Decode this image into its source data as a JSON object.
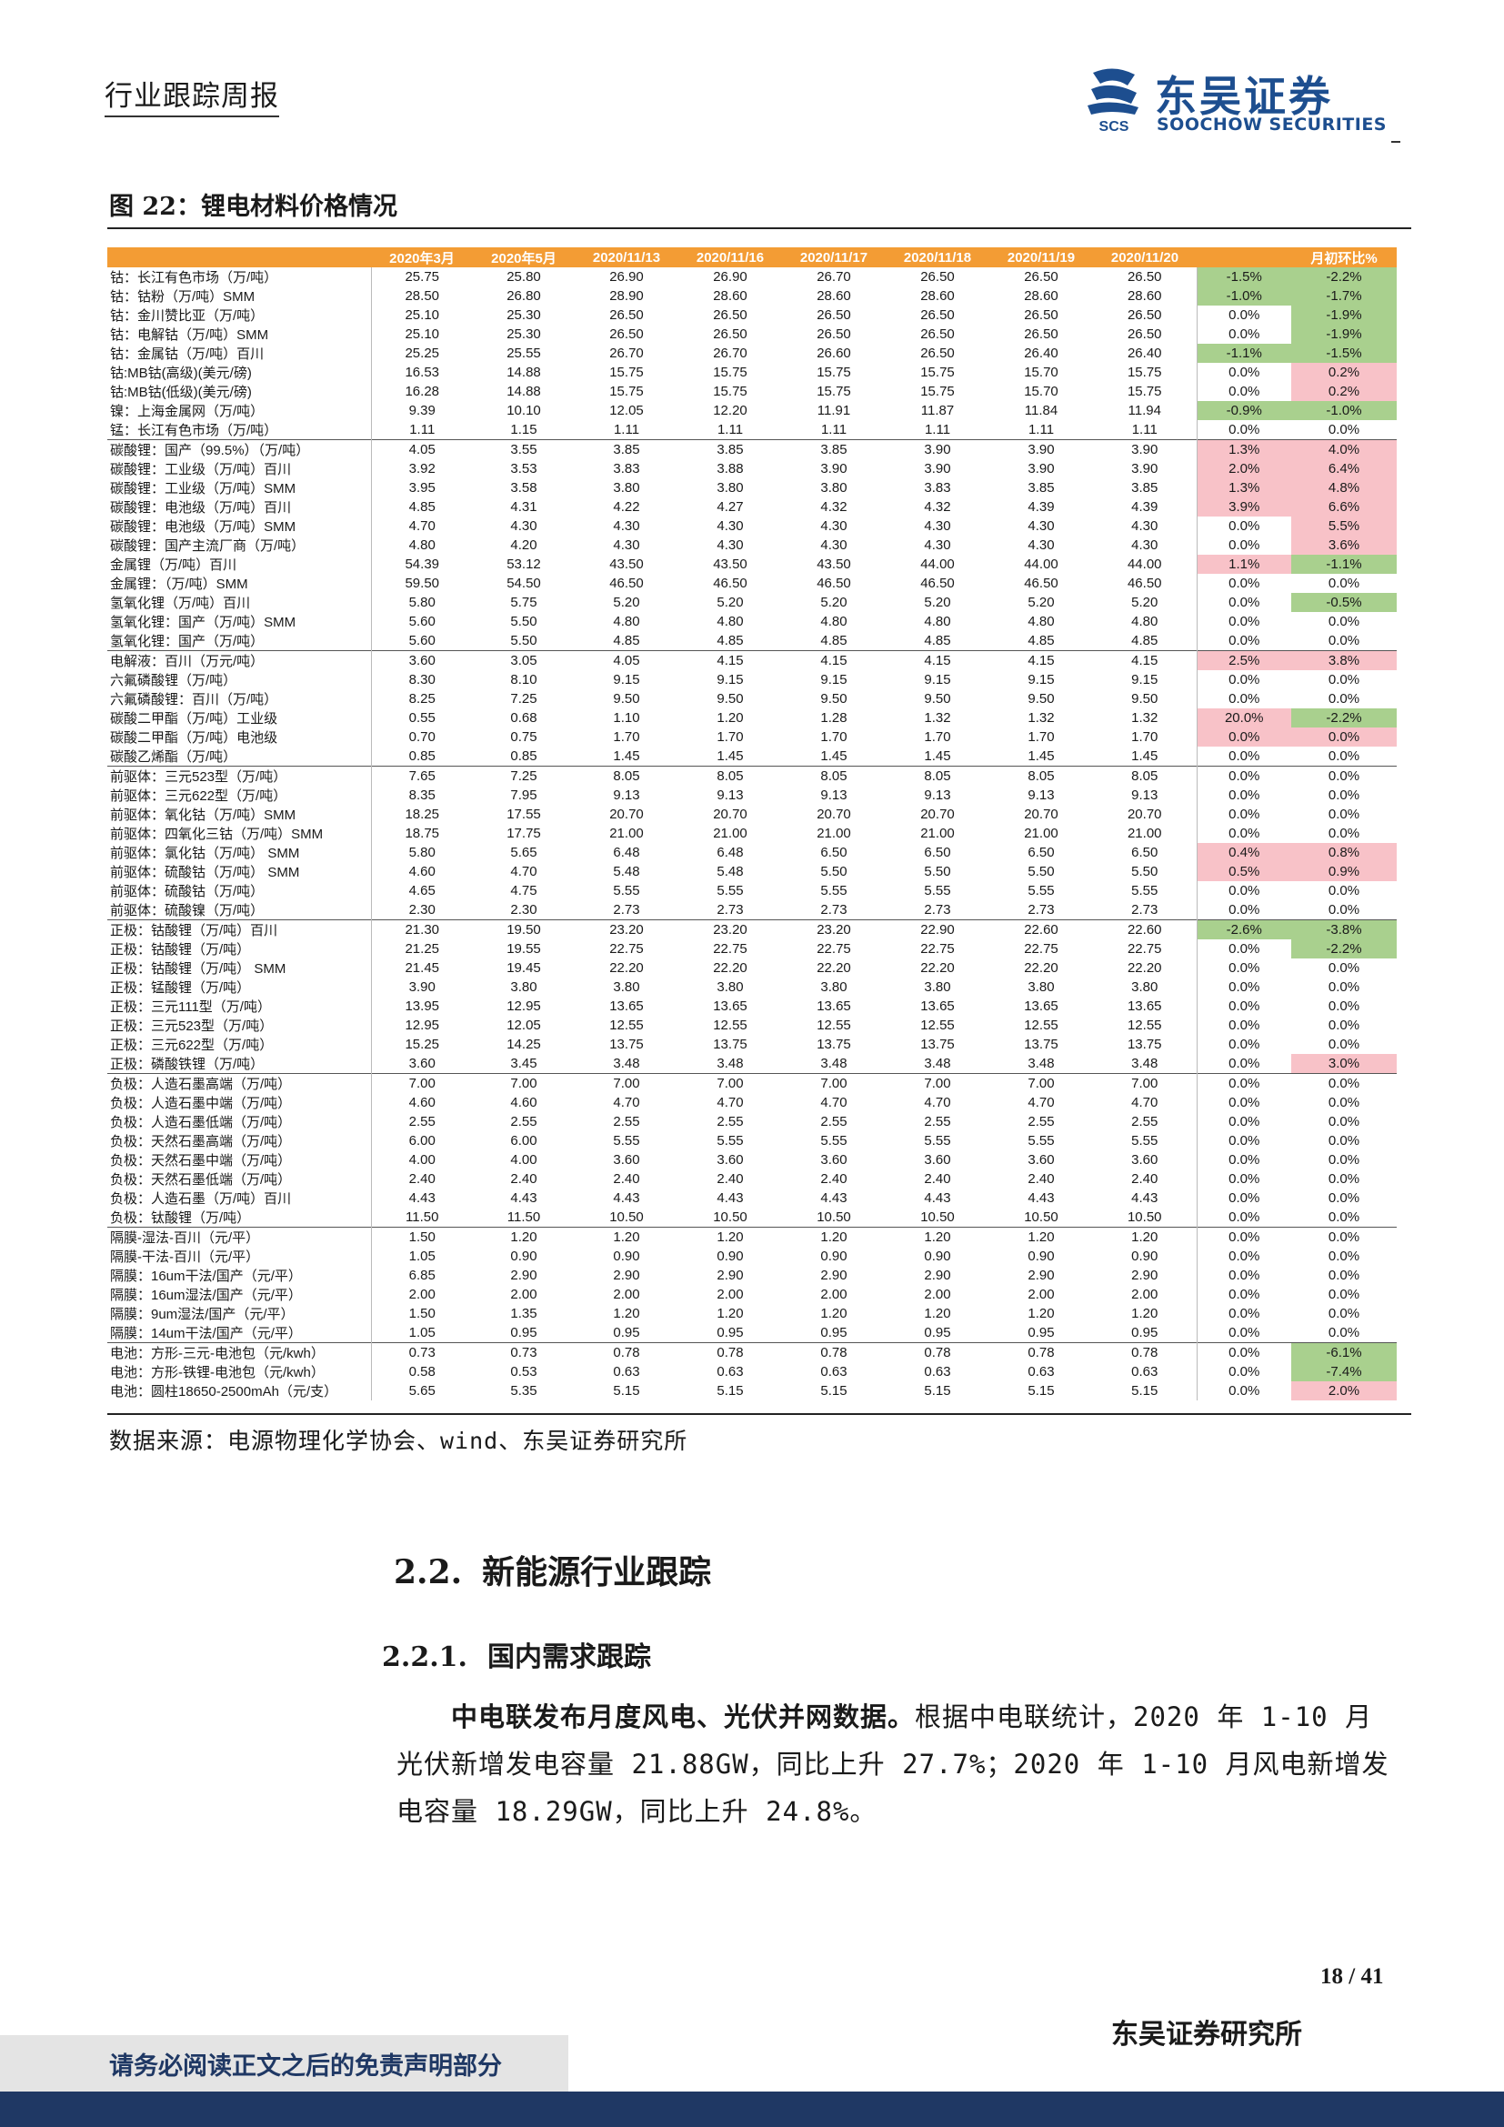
{
  "header": {
    "title": "行业跟踪周报",
    "logo_cn": "东吴证券",
    "logo_en": "SOOCHOW SECURITIES",
    "logo_mark_text": "SCS"
  },
  "figure": {
    "title": "图 22：锂电材料价格情况",
    "source": "数据来源：电源物理化学协会、wind、东吴证券研究所"
  },
  "table": {
    "columns": [
      "",
      "2020年3月",
      "2020年5月",
      "2020/11/13",
      "2020/11/16",
      "2020/11/17",
      "2020/11/18",
      "2020/11/19",
      "2020/11/20",
      "",
      "月初环比%"
    ],
    "colors": {
      "header_bg": "#f39c34",
      "negative_bg": "#a9d08e",
      "positive_bg": "#f8c2c8"
    },
    "rows": [
      {
        "name": "钴：长江有色市场（万/吨）",
        "v": [
          "25.75",
          "25.80",
          "26.90",
          "26.90",
          "26.70",
          "26.50",
          "26.50",
          "26.50"
        ],
        "wk": "-1.5%",
        "wk_s": "neg",
        "mo": "-2.2%",
        "mo_s": "neg"
      },
      {
        "name": "钴：钴粉（万/吨）SMM",
        "v": [
          "28.50",
          "26.80",
          "28.90",
          "28.60",
          "28.60",
          "28.60",
          "28.60",
          "28.60"
        ],
        "wk": "-1.0%",
        "wk_s": "neg",
        "mo": "-1.7%",
        "mo_s": "neg"
      },
      {
        "name": "钴：金川赞比亚（万/吨）",
        "v": [
          "25.10",
          "25.30",
          "26.50",
          "26.50",
          "26.50",
          "26.50",
          "26.50",
          "26.50"
        ],
        "wk": "0.0%",
        "wk_s": "",
        "mo": "-1.9%",
        "mo_s": "neg"
      },
      {
        "name": "钴：电解钴（万/吨）SMM",
        "v": [
          "25.10",
          "25.30",
          "26.50",
          "26.50",
          "26.50",
          "26.50",
          "26.50",
          "26.50"
        ],
        "wk": "0.0%",
        "wk_s": "",
        "mo": "-1.9%",
        "mo_s": "neg"
      },
      {
        "name": "钴：金属钴（万/吨）百川",
        "v": [
          "25.25",
          "25.55",
          "26.70",
          "26.70",
          "26.60",
          "26.50",
          "26.40",
          "26.40"
        ],
        "wk": "-1.1%",
        "wk_s": "neg",
        "mo": "-1.5%",
        "mo_s": "neg"
      },
      {
        "name": "钴:MB钴(高级)(美元/磅)",
        "v": [
          "16.53",
          "14.88",
          "15.75",
          "15.75",
          "15.75",
          "15.75",
          "15.70",
          "15.75"
        ],
        "wk": "0.0%",
        "wk_s": "",
        "mo": "0.2%",
        "mo_s": "pos"
      },
      {
        "name": "钴:MB钴(低级)(美元/磅)",
        "v": [
          "16.28",
          "14.88",
          "15.75",
          "15.75",
          "15.75",
          "15.75",
          "15.70",
          "15.75"
        ],
        "wk": "0.0%",
        "wk_s": "",
        "mo": "0.2%",
        "mo_s": "pos"
      },
      {
        "name": "镍：上海金属网（万/吨）",
        "v": [
          "9.39",
          "10.10",
          "12.05",
          "12.20",
          "11.91",
          "11.87",
          "11.84",
          "11.94"
        ],
        "wk": "-0.9%",
        "wk_s": "neg",
        "mo": "-1.0%",
        "mo_s": "neg"
      },
      {
        "name": "锰：长江有色市场（万/吨）",
        "v": [
          "1.11",
          "1.15",
          "1.11",
          "1.11",
          "1.11",
          "1.11",
          "1.11",
          "1.11"
        ],
        "wk": "0.0%",
        "wk_s": "",
        "mo": "0.0%",
        "mo_s": ""
      },
      {
        "name": "碳酸锂：国产（99.5%）（万/吨）",
        "v": [
          "4.05",
          "3.55",
          "3.85",
          "3.85",
          "3.85",
          "3.90",
          "3.90",
          "3.90"
        ],
        "wk": "1.3%",
        "wk_s": "pos",
        "mo": "4.0%",
        "mo_s": "pos",
        "grp": true
      },
      {
        "name": "碳酸锂：工业级（万/吨）百川",
        "v": [
          "3.92",
          "3.53",
          "3.83",
          "3.88",
          "3.90",
          "3.90",
          "3.90",
          "3.90"
        ],
        "wk": "2.0%",
        "wk_s": "pos",
        "mo": "6.4%",
        "mo_s": "pos"
      },
      {
        "name": "碳酸锂：工业级（万/吨）SMM",
        "v": [
          "3.95",
          "3.58",
          "3.80",
          "3.80",
          "3.80",
          "3.83",
          "3.85",
          "3.85"
        ],
        "wk": "1.3%",
        "wk_s": "pos",
        "mo": "4.8%",
        "mo_s": "pos"
      },
      {
        "name": "碳酸锂：电池级（万/吨）百川",
        "v": [
          "4.85",
          "4.31",
          "4.22",
          "4.27",
          "4.32",
          "4.32",
          "4.39",
          "4.39"
        ],
        "wk": "3.9%",
        "wk_s": "pos",
        "mo": "6.6%",
        "mo_s": "pos"
      },
      {
        "name": "碳酸锂：电池级（万/吨）SMM",
        "v": [
          "4.70",
          "4.30",
          "4.30",
          "4.30",
          "4.30",
          "4.30",
          "4.30",
          "4.30"
        ],
        "wk": "0.0%",
        "wk_s": "",
        "mo": "5.5%",
        "mo_s": "pos"
      },
      {
        "name": "碳酸锂：国产主流厂商（万/吨）",
        "v": [
          "4.80",
          "4.20",
          "4.30",
          "4.30",
          "4.30",
          "4.30",
          "4.30",
          "4.30"
        ],
        "wk": "0.0%",
        "wk_s": "",
        "mo": "3.6%",
        "mo_s": "pos"
      },
      {
        "name": "金属锂（万/吨）百川",
        "v": [
          "54.39",
          "53.12",
          "43.50",
          "43.50",
          "43.50",
          "44.00",
          "44.00",
          "44.00"
        ],
        "wk": "1.1%",
        "wk_s": "pos",
        "mo": "-1.1%",
        "mo_s": "neg"
      },
      {
        "name": "金属锂：（万/吨）SMM",
        "v": [
          "59.50",
          "54.50",
          "46.50",
          "46.50",
          "46.50",
          "46.50",
          "46.50",
          "46.50"
        ],
        "wk": "0.0%",
        "wk_s": "",
        "mo": "0.0%",
        "mo_s": ""
      },
      {
        "name": "氢氧化锂（万/吨）百川",
        "v": [
          "5.80",
          "5.75",
          "5.20",
          "5.20",
          "5.20",
          "5.20",
          "5.20",
          "5.20"
        ],
        "wk": "0.0%",
        "wk_s": "",
        "mo": "-0.5%",
        "mo_s": "neg"
      },
      {
        "name": "氢氧化锂：国产（万/吨）SMM",
        "v": [
          "5.60",
          "5.50",
          "4.80",
          "4.80",
          "4.80",
          "4.80",
          "4.80",
          "4.80"
        ],
        "wk": "0.0%",
        "wk_s": "",
        "mo": "0.0%",
        "mo_s": ""
      },
      {
        "name": "氢氧化锂：国产（万/吨）",
        "v": [
          "5.60",
          "5.50",
          "4.85",
          "4.85",
          "4.85",
          "4.85",
          "4.85",
          "4.85"
        ],
        "wk": "0.0%",
        "wk_s": "",
        "mo": "0.0%",
        "mo_s": ""
      },
      {
        "name": "电解液：百川（万元/吨）",
        "v": [
          "3.60",
          "3.05",
          "4.05",
          "4.15",
          "4.15",
          "4.15",
          "4.15",
          "4.15"
        ],
        "wk": "2.5%",
        "wk_s": "pos",
        "mo": "3.8%",
        "mo_s": "pos",
        "grp": true
      },
      {
        "name": "六氟磷酸锂（万/吨）",
        "v": [
          "8.30",
          "8.10",
          "9.15",
          "9.15",
          "9.15",
          "9.15",
          "9.15",
          "9.15"
        ],
        "wk": "0.0%",
        "wk_s": "",
        "mo": "0.0%",
        "mo_s": ""
      },
      {
        "name": "六氟磷酸锂：百川（万/吨）",
        "v": [
          "8.25",
          "7.25",
          "9.50",
          "9.50",
          "9.50",
          "9.50",
          "9.50",
          "9.50"
        ],
        "wk": "0.0%",
        "wk_s": "",
        "mo": "0.0%",
        "mo_s": ""
      },
      {
        "name": "碳酸二甲酯（万/吨）工业级",
        "v": [
          "0.55",
          "0.68",
          "1.10",
          "1.20",
          "1.28",
          "1.32",
          "1.32",
          "1.32"
        ],
        "wk": "20.0%",
        "wk_s": "pos",
        "mo": "-2.2%",
        "mo_s": "neg"
      },
      {
        "name": "碳酸二甲酯（万/吨）电池级",
        "v": [
          "0.70",
          "0.75",
          "1.70",
          "1.70",
          "1.70",
          "1.70",
          "1.70",
          "1.70"
        ],
        "wk": "0.0%",
        "wk_s": "pos",
        "mo": "0.0%",
        "mo_s": "pos"
      },
      {
        "name": "碳酸乙烯酯（万/吨）",
        "v": [
          "0.85",
          "0.85",
          "1.45",
          "1.45",
          "1.45",
          "1.45",
          "1.45",
          "1.45"
        ],
        "wk": "0.0%",
        "wk_s": "",
        "mo": "0.0%",
        "mo_s": ""
      },
      {
        "name": "前驱体：三元523型（万/吨）",
        "v": [
          "7.65",
          "7.25",
          "8.05",
          "8.05",
          "8.05",
          "8.05",
          "8.05",
          "8.05"
        ],
        "wk": "0.0%",
        "wk_s": "",
        "mo": "0.0%",
        "mo_s": "",
        "grp": true
      },
      {
        "name": "前驱体：三元622型（万/吨）",
        "v": [
          "8.35",
          "7.95",
          "9.13",
          "9.13",
          "9.13",
          "9.13",
          "9.13",
          "9.13"
        ],
        "wk": "0.0%",
        "wk_s": "",
        "mo": "0.0%",
        "mo_s": ""
      },
      {
        "name": "前驱体：氧化钴（万/吨）SMM",
        "v": [
          "18.25",
          "17.55",
          "20.70",
          "20.70",
          "20.70",
          "20.70",
          "20.70",
          "20.70"
        ],
        "wk": "0.0%",
        "wk_s": "",
        "mo": "0.0%",
        "mo_s": ""
      },
      {
        "name": "前驱体：四氧化三钴（万/吨）SMM",
        "v": [
          "18.75",
          "17.75",
          "21.00",
          "21.00",
          "21.00",
          "21.00",
          "21.00",
          "21.00"
        ],
        "wk": "0.0%",
        "wk_s": "",
        "mo": "0.0%",
        "mo_s": ""
      },
      {
        "name": "前驱体：氯化钴（万/吨） SMM",
        "v": [
          "5.80",
          "5.65",
          "6.48",
          "6.48",
          "6.50",
          "6.50",
          "6.50",
          "6.50"
        ],
        "wk": "0.4%",
        "wk_s": "pos",
        "mo": "0.8%",
        "mo_s": "pos"
      },
      {
        "name": "前驱体：硫酸钴（万/吨） SMM",
        "v": [
          "4.60",
          "4.70",
          "5.48",
          "5.48",
          "5.50",
          "5.50",
          "5.50",
          "5.50"
        ],
        "wk": "0.5%",
        "wk_s": "pos",
        "mo": "0.9%",
        "mo_s": "pos"
      },
      {
        "name": "前驱体：硫酸钴（万/吨）",
        "v": [
          "4.65",
          "4.75",
          "5.55",
          "5.55",
          "5.55",
          "5.55",
          "5.55",
          "5.55"
        ],
        "wk": "0.0%",
        "wk_s": "",
        "mo": "0.0%",
        "mo_s": ""
      },
      {
        "name": "前驱体：硫酸镍（万/吨）",
        "v": [
          "2.30",
          "2.30",
          "2.73",
          "2.73",
          "2.73",
          "2.73",
          "2.73",
          "2.73"
        ],
        "wk": "0.0%",
        "wk_s": "",
        "mo": "0.0%",
        "mo_s": ""
      },
      {
        "name": "正极：钴酸锂（万/吨）百川",
        "v": [
          "21.30",
          "19.50",
          "23.20",
          "23.20",
          "23.20",
          "22.90",
          "22.60",
          "22.60"
        ],
        "wk": "-2.6%",
        "wk_s": "neg",
        "mo": "-3.8%",
        "mo_s": "neg",
        "grp": true
      },
      {
        "name": "正极：钴酸锂（万/吨）",
        "v": [
          "21.25",
          "19.55",
          "22.75",
          "22.75",
          "22.75",
          "22.75",
          "22.75",
          "22.75"
        ],
        "wk": "0.0%",
        "wk_s": "",
        "mo": "-2.2%",
        "mo_s": "neg"
      },
      {
        "name": "正极：钴酸锂（万/吨） SMM",
        "v": [
          "21.45",
          "19.45",
          "22.20",
          "22.20",
          "22.20",
          "22.20",
          "22.20",
          "22.20"
        ],
        "wk": "0.0%",
        "wk_s": "",
        "mo": "0.0%",
        "mo_s": ""
      },
      {
        "name": "正极：锰酸锂（万/吨）",
        "v": [
          "3.90",
          "3.80",
          "3.80",
          "3.80",
          "3.80",
          "3.80",
          "3.80",
          "3.80"
        ],
        "wk": "0.0%",
        "wk_s": "",
        "mo": "0.0%",
        "mo_s": ""
      },
      {
        "name": "正极：三元111型（万/吨）",
        "v": [
          "13.95",
          "12.95",
          "13.65",
          "13.65",
          "13.65",
          "13.65",
          "13.65",
          "13.65"
        ],
        "wk": "0.0%",
        "wk_s": "",
        "mo": "0.0%",
        "mo_s": ""
      },
      {
        "name": "正极：三元523型（万/吨）",
        "v": [
          "12.95",
          "12.05",
          "12.55",
          "12.55",
          "12.55",
          "12.55",
          "12.55",
          "12.55"
        ],
        "wk": "0.0%",
        "wk_s": "",
        "mo": "0.0%",
        "mo_s": ""
      },
      {
        "name": "正极：三元622型（万/吨）",
        "v": [
          "15.25",
          "14.25",
          "13.75",
          "13.75",
          "13.75",
          "13.75",
          "13.75",
          "13.75"
        ],
        "wk": "0.0%",
        "wk_s": "",
        "mo": "0.0%",
        "mo_s": ""
      },
      {
        "name": "正极：磷酸铁锂（万/吨）",
        "v": [
          "3.60",
          "3.45",
          "3.48",
          "3.48",
          "3.48",
          "3.48",
          "3.48",
          "3.48"
        ],
        "wk": "0.0%",
        "wk_s": "",
        "mo": "3.0%",
        "mo_s": "pos"
      },
      {
        "name": "负极：人造石墨高端（万/吨）",
        "v": [
          "7.00",
          "7.00",
          "7.00",
          "7.00",
          "7.00",
          "7.00",
          "7.00",
          "7.00"
        ],
        "wk": "0.0%",
        "wk_s": "",
        "mo": "0.0%",
        "mo_s": "",
        "grp": true
      },
      {
        "name": "负极：人造石墨中端（万/吨）",
        "v": [
          "4.60",
          "4.60",
          "4.70",
          "4.70",
          "4.70",
          "4.70",
          "4.70",
          "4.70"
        ],
        "wk": "0.0%",
        "wk_s": "",
        "mo": "0.0%",
        "mo_s": ""
      },
      {
        "name": "负极：人造石墨低端（万/吨）",
        "v": [
          "2.55",
          "2.55",
          "2.55",
          "2.55",
          "2.55",
          "2.55",
          "2.55",
          "2.55"
        ],
        "wk": "0.0%",
        "wk_s": "",
        "mo": "0.0%",
        "mo_s": ""
      },
      {
        "name": "负极：天然石墨高端（万/吨）",
        "v": [
          "6.00",
          "6.00",
          "5.55",
          "5.55",
          "5.55",
          "5.55",
          "5.55",
          "5.55"
        ],
        "wk": "0.0%",
        "wk_s": "",
        "mo": "0.0%",
        "mo_s": ""
      },
      {
        "name": "负极：天然石墨中端（万/吨）",
        "v": [
          "4.00",
          "4.00",
          "3.60",
          "3.60",
          "3.60",
          "3.60",
          "3.60",
          "3.60"
        ],
        "wk": "0.0%",
        "wk_s": "",
        "mo": "0.0%",
        "mo_s": ""
      },
      {
        "name": "负极：天然石墨低端（万/吨）",
        "v": [
          "2.40",
          "2.40",
          "2.40",
          "2.40",
          "2.40",
          "2.40",
          "2.40",
          "2.40"
        ],
        "wk": "0.0%",
        "wk_s": "",
        "mo": "0.0%",
        "mo_s": ""
      },
      {
        "name": "负极：人造石墨（万/吨）百川",
        "v": [
          "4.43",
          "4.43",
          "4.43",
          "4.43",
          "4.43",
          "4.43",
          "4.43",
          "4.43"
        ],
        "wk": "0.0%",
        "wk_s": "",
        "mo": "0.0%",
        "mo_s": ""
      },
      {
        "name": "负极：钛酸锂（万/吨）",
        "v": [
          "11.50",
          "11.50",
          "10.50",
          "10.50",
          "10.50",
          "10.50",
          "10.50",
          "10.50"
        ],
        "wk": "0.0%",
        "wk_s": "",
        "mo": "0.0%",
        "mo_s": ""
      },
      {
        "name": "隔膜-湿法-百川（元/平）",
        "v": [
          "1.50",
          "1.20",
          "1.20",
          "1.20",
          "1.20",
          "1.20",
          "1.20",
          "1.20"
        ],
        "wk": "0.0%",
        "wk_s": "",
        "mo": "0.0%",
        "mo_s": "",
        "grp": true
      },
      {
        "name": "隔膜-干法-百川（元/平）",
        "v": [
          "1.05",
          "0.90",
          "0.90",
          "0.90",
          "0.90",
          "0.90",
          "0.90",
          "0.90"
        ],
        "wk": "0.0%",
        "wk_s": "",
        "mo": "0.0%",
        "mo_s": ""
      },
      {
        "name": "隔膜：16um干法/国产（元/平）",
        "v": [
          "6.85",
          "2.90",
          "2.90",
          "2.90",
          "2.90",
          "2.90",
          "2.90",
          "2.90"
        ],
        "wk": "0.0%",
        "wk_s": "",
        "mo": "0.0%",
        "mo_s": ""
      },
      {
        "name": "隔膜：16um湿法/国产（元/平）",
        "v": [
          "2.00",
          "2.00",
          "2.00",
          "2.00",
          "2.00",
          "2.00",
          "2.00",
          "2.00"
        ],
        "wk": "0.0%",
        "wk_s": "",
        "mo": "0.0%",
        "mo_s": ""
      },
      {
        "name": "隔膜：9um湿法/国产（元/平）",
        "v": [
          "1.50",
          "1.35",
          "1.20",
          "1.20",
          "1.20",
          "1.20",
          "1.20",
          "1.20"
        ],
        "wk": "0.0%",
        "wk_s": "",
        "mo": "0.0%",
        "mo_s": ""
      },
      {
        "name": "隔膜：14um干法/国产（元/平）",
        "v": [
          "1.05",
          "0.95",
          "0.95",
          "0.95",
          "0.95",
          "0.95",
          "0.95",
          "0.95"
        ],
        "wk": "0.0%",
        "wk_s": "",
        "mo": "0.0%",
        "mo_s": ""
      },
      {
        "name": "电池：方形-三元-电池包（元/kwh）",
        "v": [
          "0.73",
          "0.73",
          "0.78",
          "0.78",
          "0.78",
          "0.78",
          "0.78",
          "0.78"
        ],
        "wk": "0.0%",
        "wk_s": "",
        "mo": "-6.1%",
        "mo_s": "neg",
        "grp": true
      },
      {
        "name": "电池：方形-铁锂-电池包（元/kwh）",
        "v": [
          "0.58",
          "0.53",
          "0.63",
          "0.63",
          "0.63",
          "0.63",
          "0.63",
          "0.63"
        ],
        "wk": "0.0%",
        "wk_s": "",
        "mo": "-7.4%",
        "mo_s": "neg"
      },
      {
        "name": "电池：圆柱18650-2500mAh（元/支）",
        "v": [
          "5.65",
          "5.35",
          "5.15",
          "5.15",
          "5.15",
          "5.15",
          "5.15",
          "5.15"
        ],
        "wk": "0.0%",
        "wk_s": "",
        "mo": "2.0%",
        "mo_s": "pos"
      }
    ]
  },
  "section": {
    "h2_num": "2.2.",
    "h2_text": "新能源行业跟踪",
    "h3_num": "2.2.1.",
    "h3_text": "国内需求跟踪",
    "para_bold": "中电联发布月度风电、光伏并网数据。",
    "para_rest": "根据中电联统计，2020 年 1-10 月光伏新增发电容量 21.88GW，同比上升 27.7%；2020 年 1-10 月风电新增发电容量 18.29GW，同比上升 24.8%。"
  },
  "footer": {
    "page": "18 / 41",
    "org": "东吴证券研究所",
    "disclaimer": "请务必阅读正文之后的免责声明部分"
  }
}
